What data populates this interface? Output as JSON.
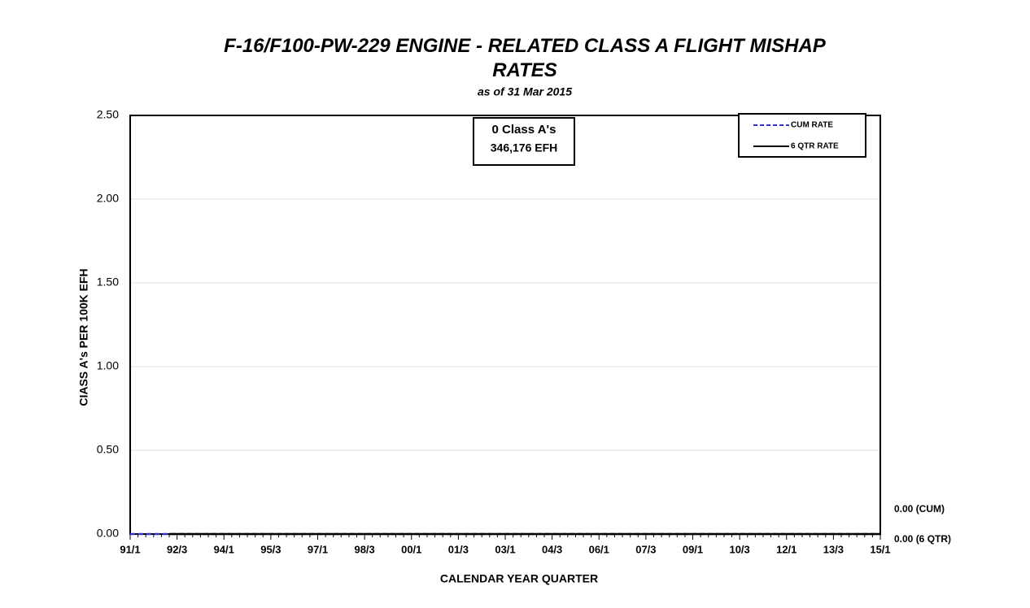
{
  "chart_data": {
    "type": "line",
    "title": "F-16/F100-PW-229 ENGINE - RELATED CLASS A FLIGHT MISHAP RATES",
    "subtitle": "as of 31 Mar 2015",
    "x_label": "CALENDAR YEAR QUARTER",
    "y_label": "CIASS A's PER 100K EFH",
    "annotation": [
      "0 Class A's",
      "346,176 EFH"
    ],
    "end_labels": [
      "0.00 (CUM)",
      "0.00 (6 QTR)"
    ],
    "categories": [
      "91/1",
      null,
      null,
      null,
      null,
      null,
      "92/3",
      null,
      null,
      null,
      null,
      null,
      "94/1",
      null,
      null,
      null,
      null,
      null,
      "95/3",
      null,
      null,
      null,
      null,
      null,
      "97/1",
      null,
      null,
      null,
      null,
      null,
      "98/3",
      null,
      null,
      null,
      null,
      null,
      "00/1",
      null,
      null,
      null,
      null,
      null,
      "01/3",
      null,
      null,
      null,
      null,
      null,
      "03/1",
      null,
      null,
      null,
      null,
      null,
      "04/3",
      null,
      null,
      null,
      null,
      null,
      "06/1",
      null,
      null,
      null,
      null,
      null,
      "07/3",
      null,
      null,
      null,
      null,
      null,
      "09/1",
      null,
      null,
      null,
      null,
      null,
      "10/3",
      null,
      null,
      null,
      null,
      null,
      "12/1",
      null,
      null,
      null,
      null,
      null,
      "13/3",
      null,
      null,
      null,
      null,
      null,
      "15/1"
    ],
    "series": [
      {
        "name": "CUM RATE",
        "color": "#3333cc",
        "dashed": true,
        "values": [
          0,
          0,
          0,
          0,
          0,
          0,
          0,
          0,
          0,
          0,
          0,
          0,
          0,
          0,
          0,
          0,
          0,
          0,
          0,
          0,
          0,
          0,
          0,
          0,
          0,
          0,
          0,
          0,
          0,
          0,
          0,
          0,
          0,
          0,
          0,
          0,
          0,
          0,
          0,
          0,
          0,
          0,
          0,
          0,
          0,
          0,
          0,
          0,
          0,
          0,
          0,
          0,
          0,
          0,
          0,
          0,
          0,
          0,
          0,
          0,
          0,
          0,
          0,
          0,
          0,
          0,
          0,
          0,
          0,
          0,
          0,
          0,
          0,
          0,
          0,
          0,
          0,
          0,
          0,
          0,
          0,
          0,
          0,
          0,
          0,
          0,
          0,
          0,
          0,
          0,
          0,
          0,
          0,
          0,
          0,
          0,
          0
        ]
      },
      {
        "name": "6 QTR RATE",
        "color": "#000000",
        "dashed": false,
        "values": [
          null,
          null,
          null,
          null,
          null,
          0,
          0,
          0,
          0,
          0,
          0,
          0,
          0,
          0,
          0,
          0,
          0,
          0,
          0,
          0,
          0,
          0,
          0,
          0,
          0,
          0,
          0,
          0,
          0,
          0,
          0,
          0,
          0,
          0,
          0,
          0,
          0,
          0,
          0,
          0,
          0,
          0,
          0,
          0,
          0,
          0,
          0,
          0,
          0,
          0,
          0,
          0,
          0,
          0,
          0,
          0,
          0,
          0,
          0,
          0,
          0,
          0,
          0,
          0,
          0,
          0,
          0,
          0,
          0,
          0,
          0,
          0,
          0,
          0,
          0,
          0,
          0,
          0,
          0,
          0,
          0,
          0,
          0,
          0,
          0,
          0,
          0,
          0,
          0,
          0,
          0,
          0,
          0,
          0,
          0,
          0,
          0
        ]
      }
    ],
    "ylim": [
      0,
      2.5
    ],
    "yticks": [
      {
        "value": 0,
        "label": "0.00"
      },
      {
        "value": 0.5,
        "label": "0.50"
      },
      {
        "value": 1,
        "label": "1.00"
      },
      {
        "value": 1.5,
        "label": "1.50"
      },
      {
        "value": 2,
        "label": "2.00"
      },
      {
        "value": 2.5,
        "label": "2.50"
      }
    ],
    "grid": true,
    "legend": "upper right"
  }
}
